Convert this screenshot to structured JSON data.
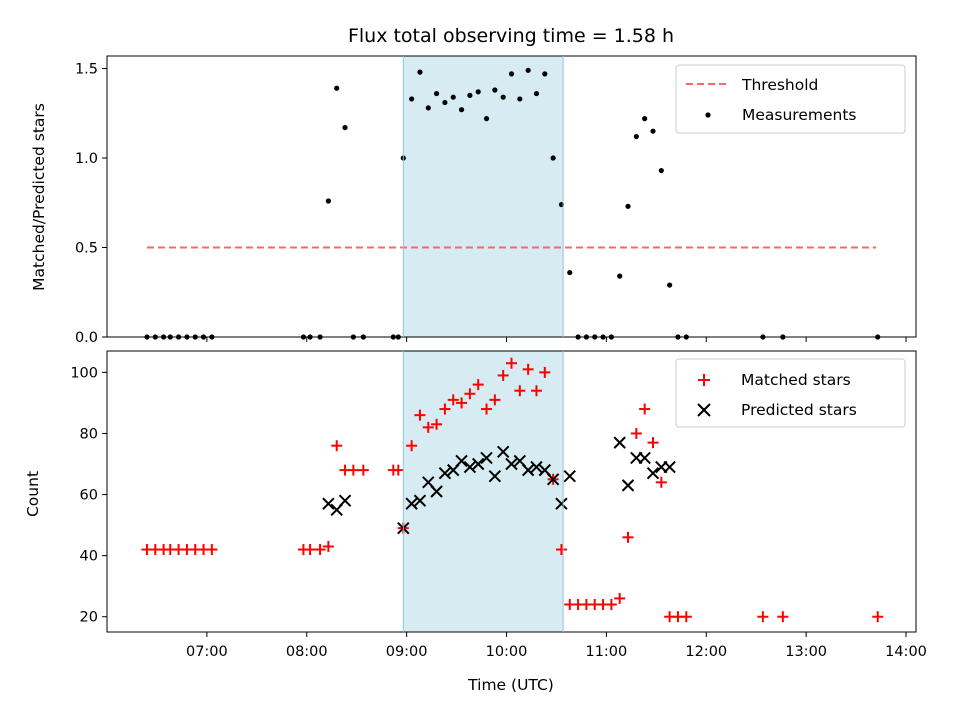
{
  "chart_data": [
    {
      "type": "scatter",
      "panel": "top",
      "title": "Flux total observing time = 1.58 h",
      "xlabel": "",
      "ylabel": "Matched/Predicted stars",
      "xlim": [
        "06:00",
        "14:06"
      ],
      "ylim": [
        0,
        1.57
      ],
      "yticks": [
        0.0,
        0.5,
        1.0,
        1.5
      ],
      "ytick_labels": [
        "0.0",
        "0.5",
        "1.0",
        "1.5"
      ],
      "xticks": [
        "07:00",
        "08:00",
        "09:00",
        "10:00",
        "11:00",
        "12:00",
        "13:00",
        "14:00"
      ],
      "grid": false,
      "legend_position": "top-right",
      "highlight_span": {
        "x_start": "08:58",
        "x_end": "10:34",
        "color": "#add8e6"
      },
      "series": [
        {
          "name": "Threshold",
          "kind": "dashed-line",
          "color": "#ff6666",
          "x": [
            "06:24",
            "13:42"
          ],
          "y": [
            0.5,
            0.5
          ]
        },
        {
          "name": "Measurements",
          "kind": "dots",
          "color": "#000000",
          "points": [
            [
              "06:24",
              0.0
            ],
            [
              "06:29",
              0.0
            ],
            [
              "06:34",
              0.0
            ],
            [
              "06:38",
              0.0
            ],
            [
              "06:43",
              0.0
            ],
            [
              "06:48",
              0.0
            ],
            [
              "06:53",
              0.0
            ],
            [
              "06:58",
              0.0
            ],
            [
              "07:03",
              0.0
            ],
            [
              "07:58",
              0.0
            ],
            [
              "08:02",
              0.0
            ],
            [
              "08:08",
              0.0
            ],
            [
              "08:13",
              0.76
            ],
            [
              "08:18",
              1.39
            ],
            [
              "08:23",
              1.17
            ],
            [
              "08:28",
              0.0
            ],
            [
              "08:34",
              0.0
            ],
            [
              "08:52",
              0.0
            ],
            [
              "08:55",
              0.0
            ],
            [
              "08:58",
              1.0
            ],
            [
              "09:03",
              1.33
            ],
            [
              "09:08",
              1.48
            ],
            [
              "09:13",
              1.28
            ],
            [
              "09:18",
              1.36
            ],
            [
              "09:23",
              1.31
            ],
            [
              "09:28",
              1.34
            ],
            [
              "09:33",
              1.27
            ],
            [
              "09:38",
              1.35
            ],
            [
              "09:43",
              1.37
            ],
            [
              "09:48",
              1.22
            ],
            [
              "09:53",
              1.38
            ],
            [
              "09:58",
              1.34
            ],
            [
              "10:03",
              1.47
            ],
            [
              "10:08",
              1.33
            ],
            [
              "10:13",
              1.49
            ],
            [
              "10:18",
              1.36
            ],
            [
              "10:23",
              1.47
            ],
            [
              "10:28",
              1.0
            ],
            [
              "10:33",
              0.74
            ],
            [
              "10:38",
              0.36
            ],
            [
              "10:43",
              0.0
            ],
            [
              "10:48",
              0.0
            ],
            [
              "10:53",
              0.0
            ],
            [
              "10:58",
              0.0
            ],
            [
              "11:03",
              0.0
            ],
            [
              "11:08",
              0.34
            ],
            [
              "11:13",
              0.73
            ],
            [
              "11:18",
              1.12
            ],
            [
              "11:23",
              1.22
            ],
            [
              "11:28",
              1.15
            ],
            [
              "11:33",
              0.93
            ],
            [
              "11:38",
              0.29
            ],
            [
              "11:43",
              0.0
            ],
            [
              "11:48",
              0.0
            ],
            [
              "12:34",
              0.0
            ],
            [
              "12:46",
              0.0
            ],
            [
              "13:43",
              0.0
            ]
          ]
        }
      ]
    },
    {
      "type": "scatter",
      "panel": "bottom",
      "title": "",
      "xlabel": "Time (UTC)",
      "ylabel": "Count",
      "xlim": [
        "06:00",
        "14:06"
      ],
      "ylim": [
        15,
        107
      ],
      "yticks": [
        20,
        40,
        60,
        80,
        100
      ],
      "ytick_labels": [
        "20",
        "40",
        "60",
        "80",
        "100"
      ],
      "xticks": [
        "07:00",
        "08:00",
        "09:00",
        "10:00",
        "11:00",
        "12:00",
        "13:00",
        "14:00"
      ],
      "xtick_labels": [
        "07:00",
        "08:00",
        "09:00",
        "10:00",
        "11:00",
        "12:00",
        "13:00",
        "14:00"
      ],
      "grid": false,
      "legend_position": "top-right",
      "highlight_span": {
        "x_start": "08:58",
        "x_end": "10:34",
        "color": "#add8e6"
      },
      "series": [
        {
          "name": "Matched stars",
          "marker": "plus",
          "color": "#ff0000",
          "points": [
            [
              "06:24",
              42
            ],
            [
              "06:29",
              42
            ],
            [
              "06:34",
              42
            ],
            [
              "06:38",
              42
            ],
            [
              "06:43",
              42
            ],
            [
              "06:48",
              42
            ],
            [
              "06:53",
              42
            ],
            [
              "06:58",
              42
            ],
            [
              "07:03",
              42
            ],
            [
              "07:58",
              42
            ],
            [
              "08:02",
              42
            ],
            [
              "08:08",
              42
            ],
            [
              "08:13",
              43
            ],
            [
              "08:18",
              76
            ],
            [
              "08:23",
              68
            ],
            [
              "08:28",
              68
            ],
            [
              "08:34",
              68
            ],
            [
              "08:52",
              68
            ],
            [
              "08:55",
              68
            ],
            [
              "08:58",
              49
            ],
            [
              "09:03",
              76
            ],
            [
              "09:08",
              86
            ],
            [
              "09:13",
              82
            ],
            [
              "09:18",
              83
            ],
            [
              "09:23",
              88
            ],
            [
              "09:28",
              91
            ],
            [
              "09:33",
              90
            ],
            [
              "09:38",
              93
            ],
            [
              "09:43",
              96
            ],
            [
              "09:48",
              88
            ],
            [
              "09:53",
              91
            ],
            [
              "09:58",
              99
            ],
            [
              "10:03",
              103
            ],
            [
              "10:08",
              94
            ],
            [
              "10:13",
              101
            ],
            [
              "10:18",
              94
            ],
            [
              "10:23",
              100
            ],
            [
              "10:28",
              65
            ],
            [
              "10:33",
              42
            ],
            [
              "10:38",
              24
            ],
            [
              "10:43",
              24
            ],
            [
              "10:48",
              24
            ],
            [
              "10:53",
              24
            ],
            [
              "10:58",
              24
            ],
            [
              "11:03",
              24
            ],
            [
              "11:08",
              26
            ],
            [
              "11:13",
              46
            ],
            [
              "11:18",
              80
            ],
            [
              "11:23",
              88
            ],
            [
              "11:28",
              77
            ],
            [
              "11:33",
              64
            ],
            [
              "11:38",
              20
            ],
            [
              "11:43",
              20
            ],
            [
              "11:48",
              20
            ],
            [
              "12:34",
              20
            ],
            [
              "12:46",
              20
            ],
            [
              "13:43",
              20
            ]
          ]
        },
        {
          "name": "Predicted stars",
          "marker": "x",
          "color": "#000000",
          "points": [
            [
              "08:13",
              57
            ],
            [
              "08:18",
              55
            ],
            [
              "08:23",
              58
            ],
            [
              "08:58",
              49
            ],
            [
              "09:03",
              57
            ],
            [
              "09:08",
              58
            ],
            [
              "09:13",
              64
            ],
            [
              "09:18",
              61
            ],
            [
              "09:23",
              67
            ],
            [
              "09:28",
              68
            ],
            [
              "09:33",
              71
            ],
            [
              "09:38",
              69
            ],
            [
              "09:43",
              70
            ],
            [
              "09:48",
              72
            ],
            [
              "09:53",
              66
            ],
            [
              "09:58",
              74
            ],
            [
              "10:03",
              70
            ],
            [
              "10:08",
              71
            ],
            [
              "10:13",
              68
            ],
            [
              "10:18",
              69
            ],
            [
              "10:23",
              68
            ],
            [
              "10:28",
              65
            ],
            [
              "10:33",
              57
            ],
            [
              "10:38",
              66
            ],
            [
              "11:08",
              77
            ],
            [
              "11:13",
              63
            ],
            [
              "11:18",
              72
            ],
            [
              "11:23",
              72
            ],
            [
              "11:28",
              67
            ],
            [
              "11:33",
              69
            ],
            [
              "11:38",
              69
            ]
          ]
        }
      ]
    }
  ]
}
